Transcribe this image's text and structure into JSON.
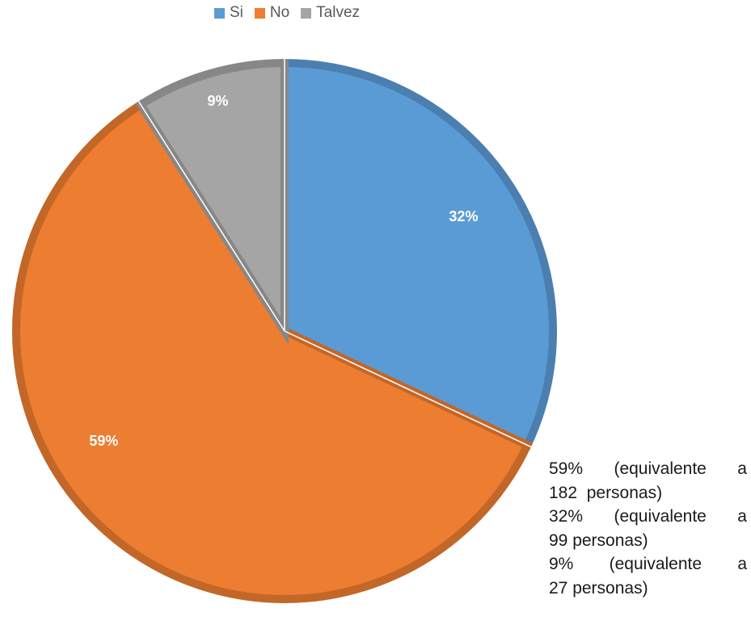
{
  "chart_data": {
    "type": "pie",
    "categories": [
      "Si",
      "No",
      "Talvez"
    ],
    "values": [
      32,
      59,
      9
    ],
    "data_labels": [
      "32%",
      "59%",
      "9%"
    ],
    "colors": [
      "#5B9BD5",
      "#ED7D31",
      "#A5A5A5"
    ],
    "start_angle_deg": 0,
    "direction": "clockwise",
    "legend_position": "top"
  },
  "notes": [
    [
      "59%",
      "(equivalente",
      "a"
    ],
    [
      "182  personas)"
    ],
    [
      "32%",
      "(equivalente",
      "a"
    ],
    [
      "99 personas)"
    ],
    [
      "9%",
      "(equivalente",
      "a"
    ],
    [
      "27 personas)"
    ]
  ]
}
